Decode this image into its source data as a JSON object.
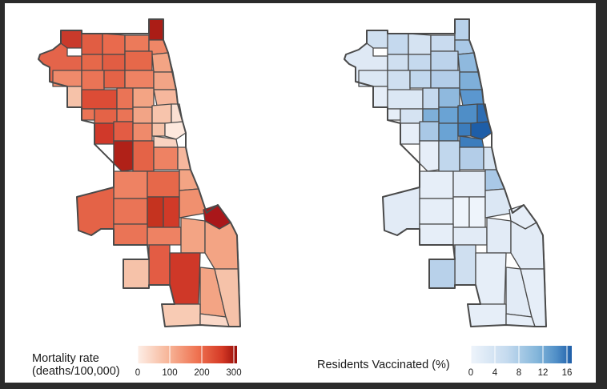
{
  "maps": [
    {
      "name": "mortality-map",
      "legend": {
        "title_line1": "Mortality rate",
        "title_line2": "(deaths/100,000)",
        "ticks": [
          "0",
          "100",
          "200",
          "300"
        ],
        "range": [
          0,
          300
        ],
        "colors": [
          "#fdeee6",
          "#f7b79b",
          "#ef7351",
          "#d53a26",
          "#990f0a"
        ]
      }
    },
    {
      "name": "vaccination-map",
      "legend": {
        "title": "Residents Vaccinated (%)",
        "ticks": [
          "0",
          "4",
          "8",
          "12",
          "16"
        ],
        "range": [
          0,
          16
        ],
        "colors": [
          "#eef4fb",
          "#c6dbef",
          "#85b7db",
          "#4f8ec7",
          "#1e5ea8"
        ]
      }
    }
  ],
  "colors": {
    "border": "#4a4a4a",
    "frame": "#2b2b2b",
    "background": "#ffffff"
  }
}
